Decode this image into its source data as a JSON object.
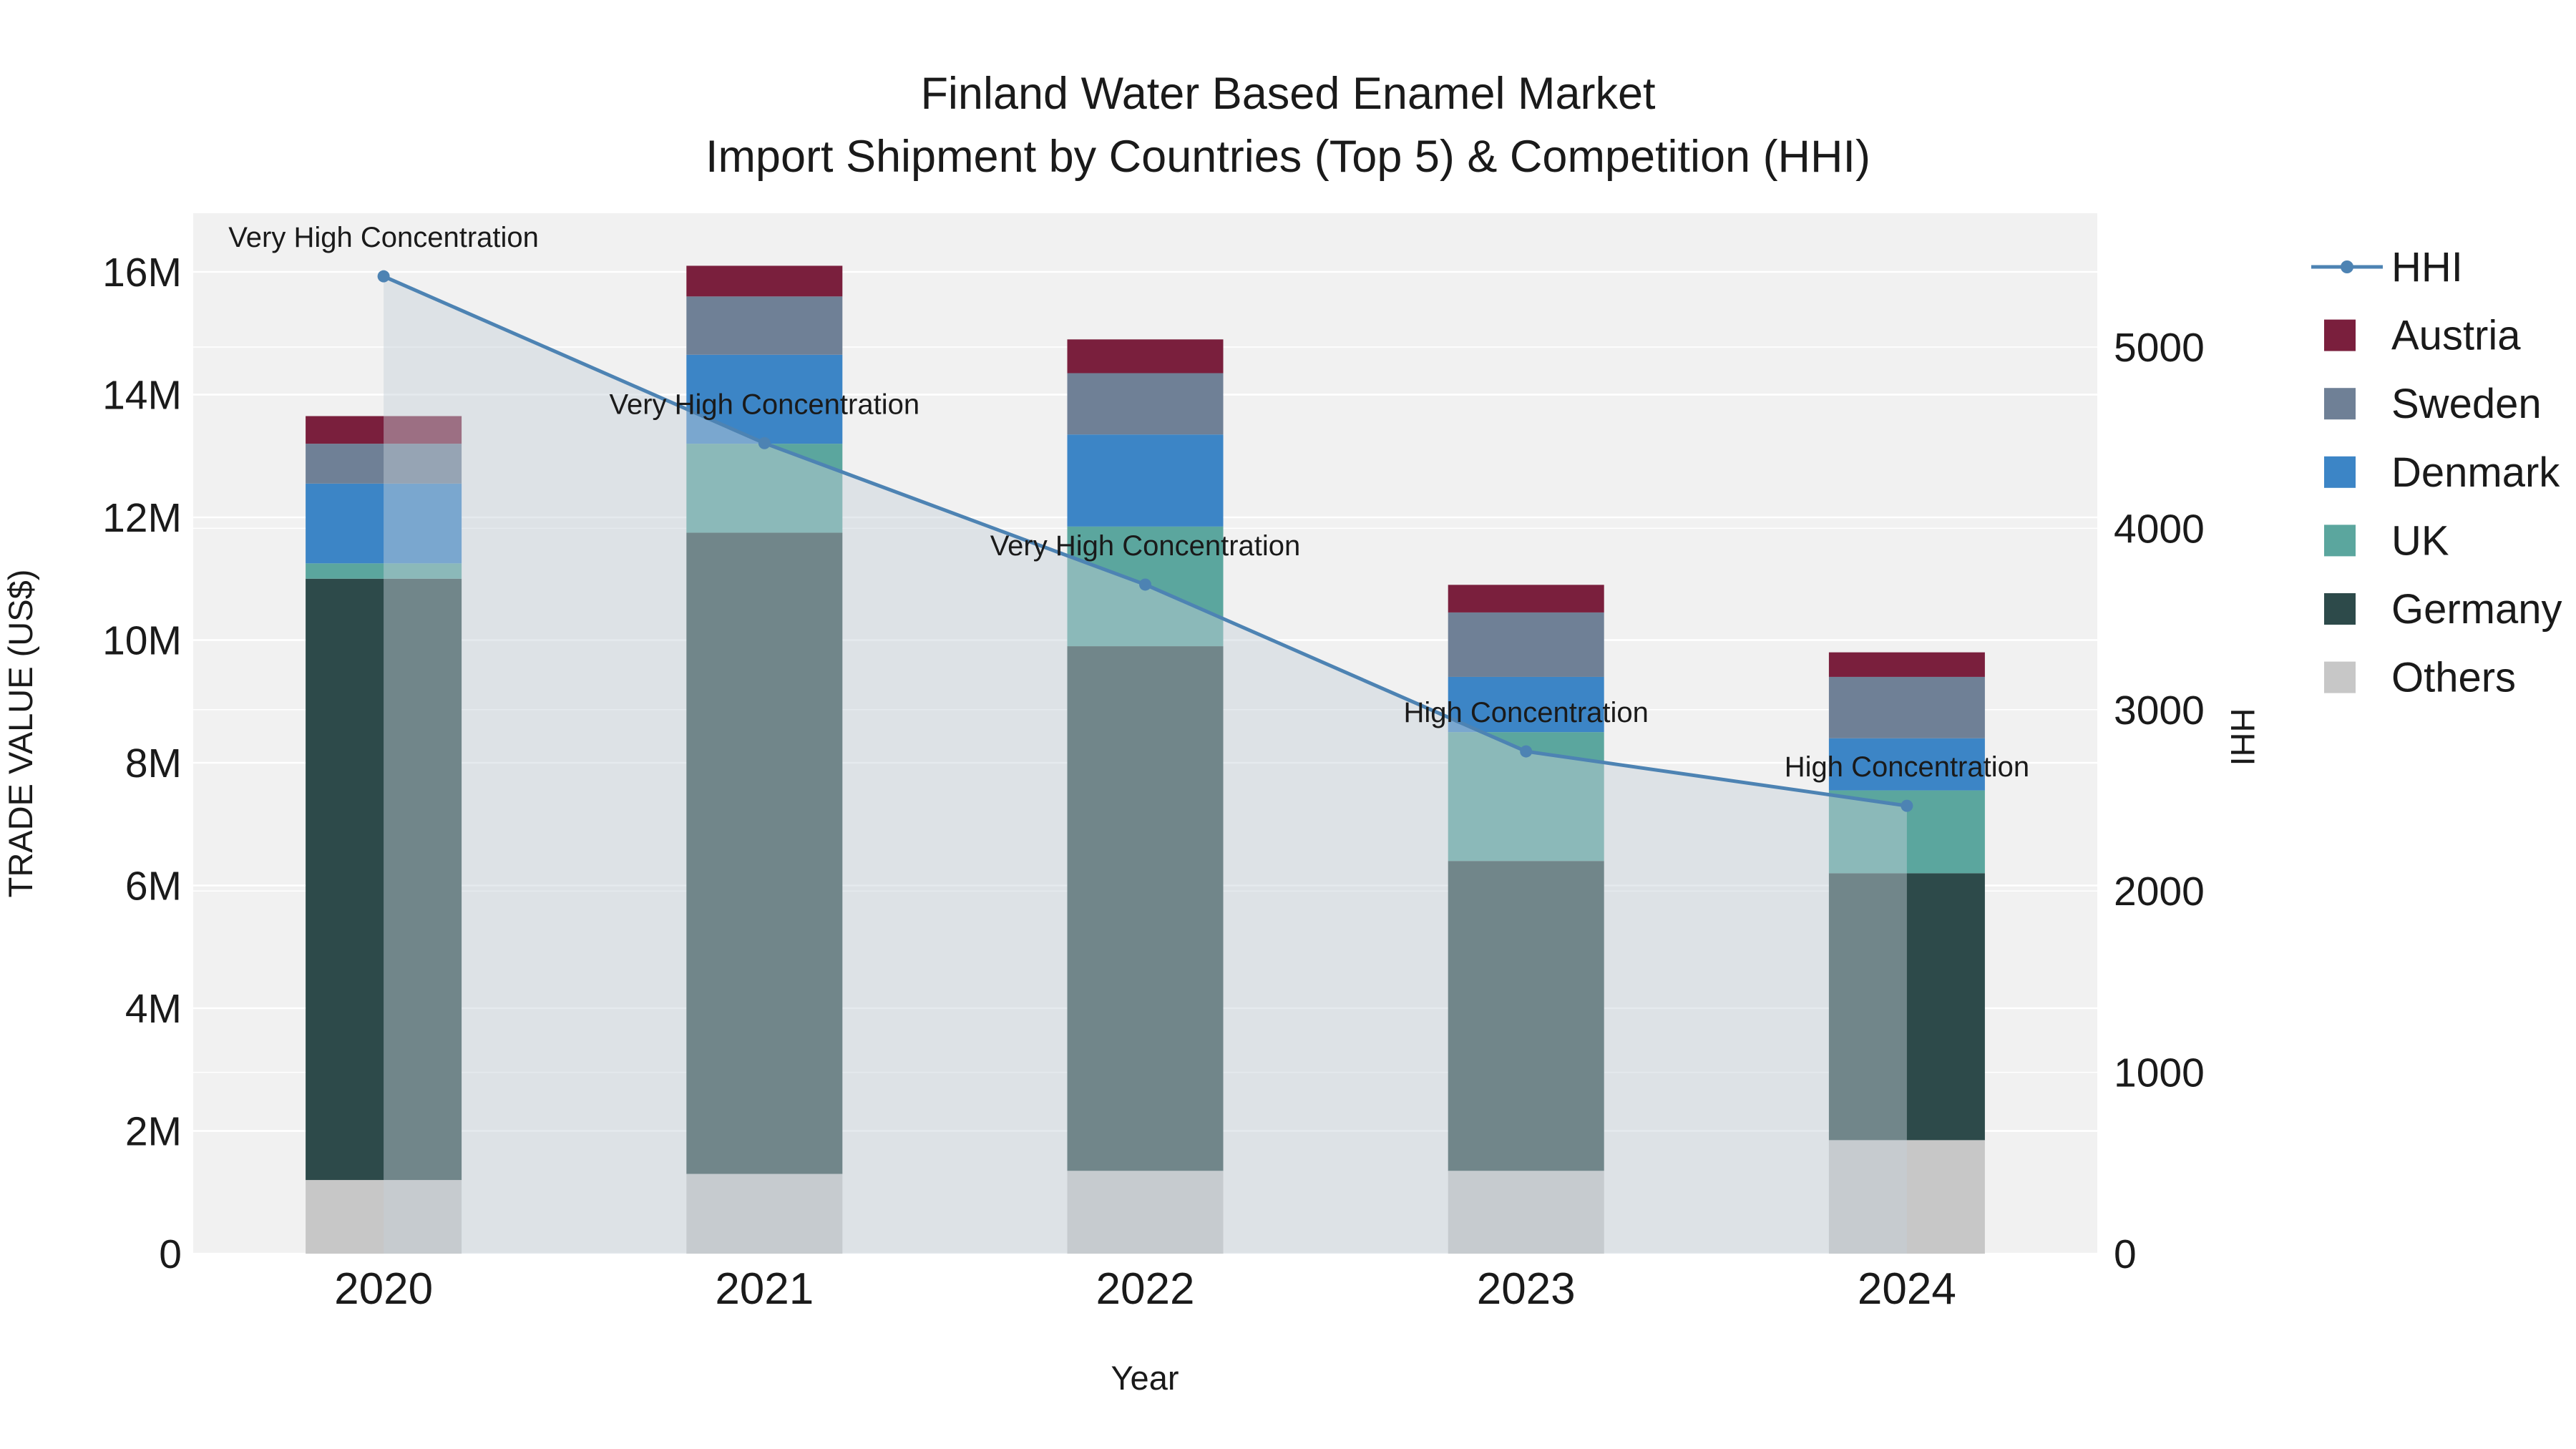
{
  "title": {
    "line1": "Finland Water Based Enamel Market",
    "line2": "Import Shipment by Countries (Top 5) & Competition (HHI)"
  },
  "chart_data": {
    "type": "bar",
    "variant": "stacked-bars-with-line-overlay-dual-axis",
    "x_label": "Year",
    "categories": [
      "2020",
      "2021",
      "2022",
      "2023",
      "2024"
    ],
    "bar_unit": "million US$",
    "series": [
      {
        "name": "Others",
        "color": "#c7c7c7",
        "values": [
          1.2,
          1.3,
          1.35,
          1.35,
          1.85
        ]
      },
      {
        "name": "Germany",
        "color": "#2d4a4a",
        "values": [
          9.8,
          10.45,
          8.55,
          5.05,
          4.35
        ]
      },
      {
        "name": "UK",
        "color": "#5ba69e",
        "values": [
          0.25,
          1.45,
          1.95,
          2.1,
          1.35
        ]
      },
      {
        "name": "Denmark",
        "color": "#3c85c6",
        "values": [
          1.3,
          1.45,
          1.5,
          0.9,
          0.85
        ]
      },
      {
        "name": "Sweden",
        "color": "#6f8096",
        "values": [
          0.65,
          0.95,
          1.0,
          1.05,
          1.0
        ]
      },
      {
        "name": "Austria",
        "color": "#7a1f3d",
        "values": [
          0.45,
          0.5,
          0.55,
          0.45,
          0.4
        ]
      }
    ],
    "line": {
      "name": "HHI",
      "color": "#4d83b3",
      "area_fill": "rgba(198,208,218,0.45)",
      "values": [
        5390,
        4470,
        3690,
        2770,
        2470
      ]
    },
    "annotations": [
      {
        "x": "2020",
        "text": "Very High Concentration"
      },
      {
        "x": "2021",
        "text": "Very High Concentration"
      },
      {
        "x": "2022",
        "text": "Very High Concentration"
      },
      {
        "x": "2023",
        "text": "High Concentration"
      },
      {
        "x": "2024",
        "text": "High Concentration"
      }
    ],
    "y_left": {
      "label": "TRADE VALUE (US$)",
      "tick_values": [
        0,
        2,
        4,
        6,
        8,
        10,
        12,
        14,
        16
      ],
      "tick_labels": [
        "0",
        "2M",
        "4M",
        "6M",
        "8M",
        "10M",
        "12M",
        "14M",
        "16M"
      ]
    },
    "y_right": {
      "label": "HHI",
      "tick_values": [
        0,
        1000,
        2000,
        3000,
        4000,
        5000
      ],
      "tick_labels": [
        "0",
        "1000",
        "2000",
        "3000",
        "4000",
        "5000"
      ]
    },
    "legend": {
      "position": "right",
      "entries": [
        "HHI",
        "Austria",
        "Sweden",
        "Denmark",
        "UK",
        "Germany",
        "Others"
      ]
    },
    "grid": true,
    "plot_bg": "#f1f1f1",
    "grid_color": "#ffffff"
  }
}
